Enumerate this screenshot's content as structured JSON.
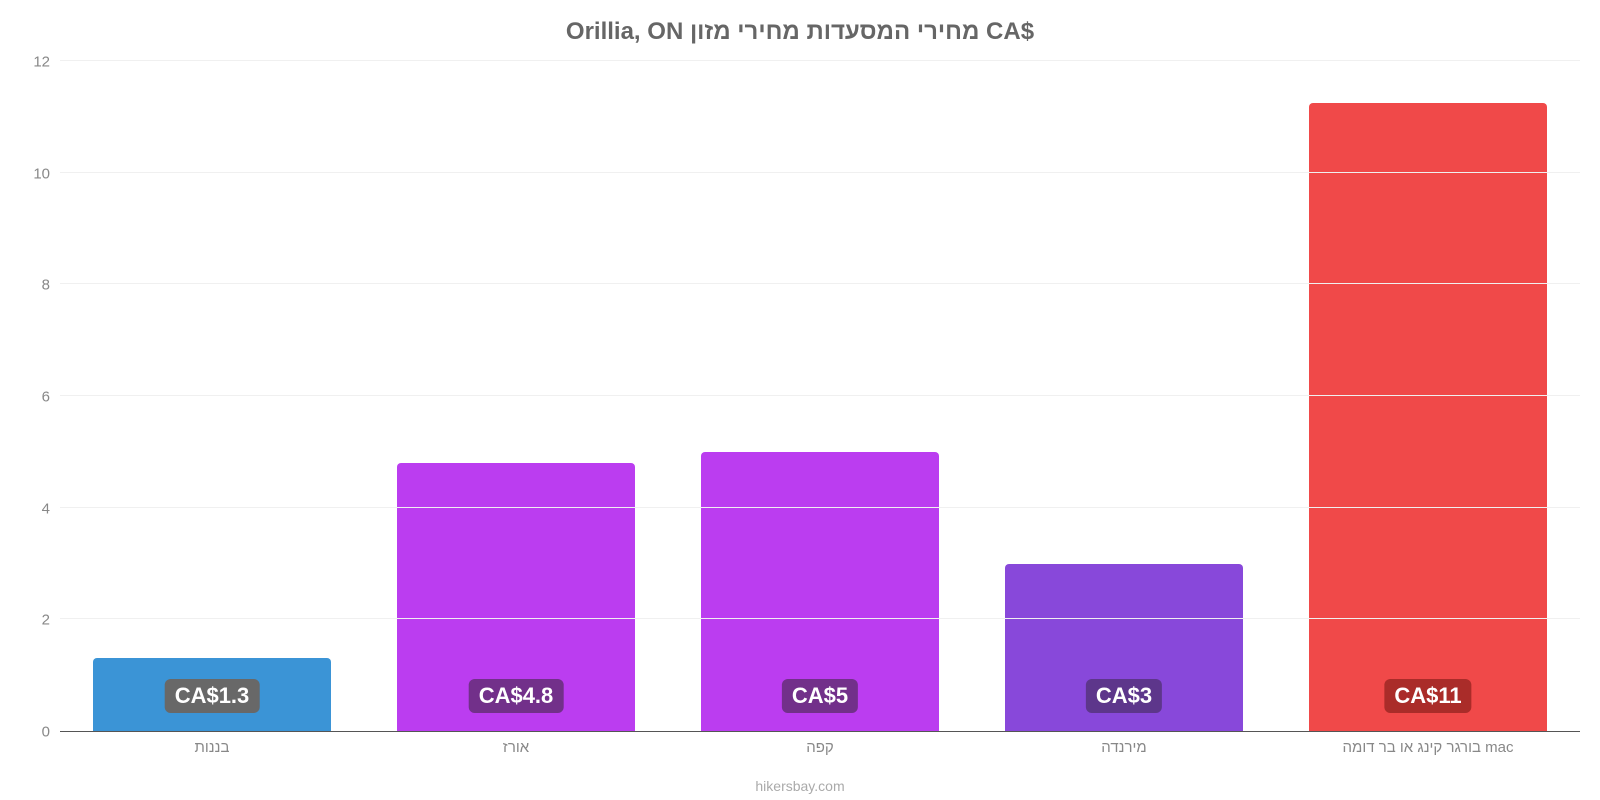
{
  "chart": {
    "type": "bar",
    "title": "Orillia, ON מחירי המסעדות מחירי מזון CA$",
    "title_color": "#666666",
    "title_fontsize": 24,
    "background_color": "#ffffff",
    "grid_color": "#f0f0f0",
    "axis_color": "#555555",
    "label_color": "#888888",
    "label_fontsize": 15,
    "value_label_fontsize": 22,
    "value_label_text_color": "#ffffff",
    "attribution": "hikersbay.com",
    "attribution_color": "#aaaaaa",
    "ylim_max": 12,
    "ytick_step": 2,
    "yticks": [
      "0",
      "2",
      "4",
      "6",
      "8",
      "10",
      "12"
    ],
    "bar_width_ratio": 0.78,
    "rtl_layout": true,
    "bars": [
      {
        "category": "בורגר קינג או בר דומה mac",
        "value": 11.25,
        "label": "CA$11",
        "bar_color": "#f03e3e",
        "badge_color": "#a51f1c"
      },
      {
        "category": "מירנדה",
        "value": 3.0,
        "label": "CA$3",
        "bar_color": "#813dd8",
        "badge_color": "#532a84"
      },
      {
        "category": "קפה",
        "value": 5.0,
        "label": "CA$5",
        "bar_color": "#b731f0",
        "badge_color": "#6a2483"
      },
      {
        "category": "אורז",
        "value": 4.8,
        "label": "CA$4.8",
        "bar_color": "#b731f0",
        "badge_color": "#6a2483"
      },
      {
        "category": "בננות",
        "value": 1.3,
        "label": "CA$1.3",
        "bar_color": "#2f8ed4",
        "badge_color": "#5f5f5f"
      }
    ]
  }
}
